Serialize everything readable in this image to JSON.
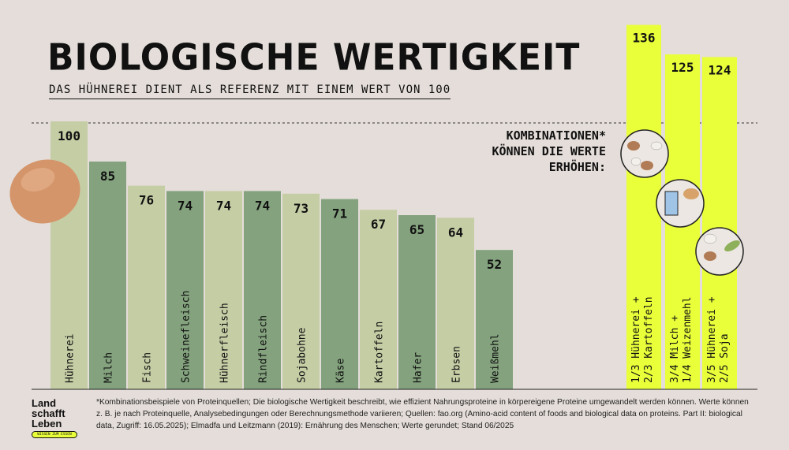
{
  "title": "BIOLOGISCHE WERTIGKEIT",
  "subtitle": "DAS HÜHNEREI DIENT ALS REFERENZ MIT EINEM WERT VON 100",
  "combo_note": [
    "KOMBINATIONEN*",
    "KÖNNEN DIE WERTE",
    "ERHÖHEN:"
  ],
  "footnote": "*Kombinationsbeispiele von Proteinquellen; Die biologische Wertigkeit beschreibt, wie effizient Nahrungsproteine in körpereigene Proteine umgewandelt werden können. Werte können z. B. je nach Proteinquelle, Analysebedingungen oder Berechnungsmethode variieren; Quellen: fao.org (Amino-acid content of foods and biological data on proteins. Part II: biological data, Zugriff: 16.05.2025); Elmadfa und Leitzmann (2019): Ernährung des Menschen; Werte gerundet; Stand 06/2025",
  "logo": {
    "lines": [
      "Land",
      "schafft",
      "Leben"
    ],
    "tagline": "WISSEN ZUM ESSEN"
  },
  "colors": {
    "background": "#e4ddd9",
    "light_bar": "#c5cda5",
    "dark_bar": "#83a27d",
    "combo_bar": "#e9ff3a",
    "text": "#111111"
  },
  "icons": [
    "egg-icon",
    "egg-potato-plate-icon",
    "milk-bread-plate-icon",
    "egg-soy-plate-icon"
  ],
  "chart_data": {
    "type": "bar",
    "title": "BIOLOGISCHE WERTIGKEIT",
    "reference_value": 100,
    "categories": [
      "Hühnerei",
      "Milch",
      "Fisch",
      "Schweinefleisch",
      "Hühnerfleisch",
      "Rindfleisch",
      "Sojabohne",
      "Käse",
      "Kartoffeln",
      "Hafer",
      "Erbsen",
      "Weißmehl"
    ],
    "values": [
      100,
      85,
      76,
      74,
      74,
      74,
      73,
      71,
      67,
      65,
      64,
      52
    ],
    "combinations": [
      {
        "label": [
          "1/3 Hühnerei +",
          "2/3 Kartoffeln"
        ],
        "value": 136
      },
      {
        "label": [
          "3/4 Milch +",
          "1/4 Weizenmehl"
        ],
        "value": 125
      },
      {
        "label": [
          "3/5 Hühnerei +",
          "2/5 Soja"
        ],
        "value": 124
      }
    ]
  }
}
